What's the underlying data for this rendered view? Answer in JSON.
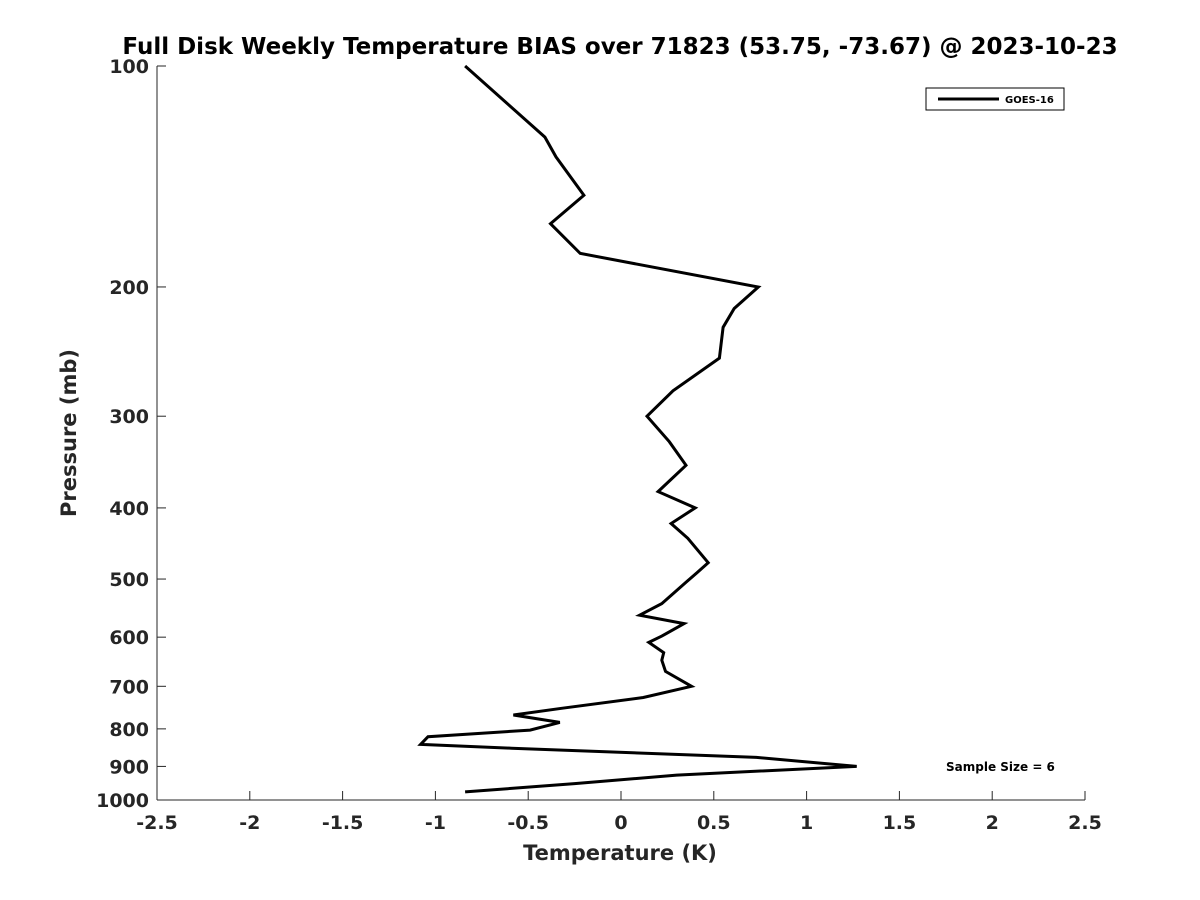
{
  "chart_data": {
    "type": "line",
    "title": "Full Disk Weekly Temperature BIAS over 71823 (53.75, -73.67) @ 2023-10-23",
    "xlabel": "Temperature (K)",
    "ylabel": "Pressure (mb)",
    "xlim": [
      -2.5,
      2.5
    ],
    "ylim": [
      100,
      1000
    ],
    "y_scale": "log",
    "y_reversed": true,
    "x_ticks": [
      -2.5,
      -2,
      -1.5,
      -1,
      -0.5,
      0,
      0.5,
      1,
      1.5,
      2,
      2.5
    ],
    "x_tick_labels": [
      "-2.5",
      "-2",
      "-1.5",
      "-1",
      "-0.5",
      "0",
      "0.5",
      "1",
      "1.5",
      "2",
      "2.5"
    ],
    "y_ticks": [
      100,
      200,
      300,
      400,
      500,
      600,
      700,
      800,
      900,
      1000
    ],
    "y_tick_labels": [
      "100",
      "200",
      "300",
      "400",
      "500",
      "600",
      "700",
      "800",
      "900",
      "1000"
    ],
    "grid": false,
    "legend_position": "top-right",
    "series": [
      {
        "name": "GOES-16",
        "color": "#000000",
        "x": [
          -0.84,
          -0.41,
          -0.35,
          -0.2,
          -0.38,
          -0.22,
          0.74,
          0.61,
          0.55,
          0.53,
          0.28,
          0.14,
          0.26,
          0.35,
          0.2,
          0.4,
          0.27,
          0.36,
          0.47,
          0.41,
          0.35,
          0.22,
          0.1,
          0.34,
          0.22,
          0.15,
          0.23,
          0.22,
          0.24,
          0.38,
          0.12,
          -0.32,
          -0.58,
          -0.33,
          -0.49,
          -1.04,
          -1.08,
          -0.59,
          0.73,
          1.27,
          0.3,
          -0.25,
          -0.84
        ],
        "y": [
          100,
          125,
          133,
          150,
          164,
          180,
          200,
          214,
          227,
          250,
          277,
          300,
          325,
          350,
          380,
          400,
          420,
          440,
          475,
          490,
          505,
          540,
          560,
          575,
          598,
          610,
          630,
          645,
          668,
          700,
          725,
          750,
          766,
          784,
          803,
          820,
          840,
          850,
          875,
          900,
          925,
          950,
          975
        ]
      }
    ],
    "annotation": "Sample Size = 6"
  }
}
